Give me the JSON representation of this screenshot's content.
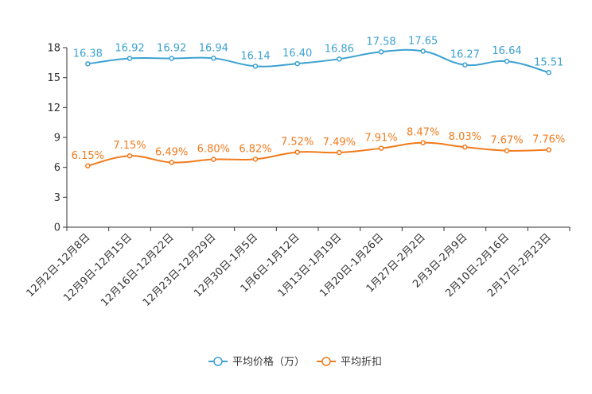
{
  "colors": {
    "series1": "#3ba1d1",
    "series2": "#f07b1c",
    "axis": "#333333"
  },
  "chart_data": {
    "type": "line",
    "title": "",
    "xlabel": "",
    "ylabel": "",
    "ylim": [
      0,
      18
    ],
    "yticks": [
      0,
      3,
      6,
      9,
      12,
      15,
      18
    ],
    "grid": false,
    "legend": "bottom-center",
    "categories": [
      "12月2日-12月8日",
      "12月9日-12月15日",
      "12月16日-12月22日",
      "12月23日-12月29日",
      "12月30日-1月5日",
      "1月6日-1月12日",
      "1月13日-1月19日",
      "1月20日-1月26日",
      "1月27日-2月2日",
      "2月3日-2月9日",
      "2月10日-2月16日",
      "2月17日-2月23日"
    ],
    "series": [
      {
        "name": "平均价格（万）",
        "color": "#3ba1d1",
        "values": [
          16.38,
          16.92,
          16.92,
          16.94,
          16.14,
          16.4,
          16.86,
          17.58,
          17.65,
          16.27,
          16.64,
          15.51
        ],
        "labels": [
          "16.38",
          "16.92",
          "16.92",
          "16.94",
          "16.14",
          "16.40",
          "16.86",
          "17.58",
          "17.65",
          "16.27",
          "16.64",
          "15.51"
        ]
      },
      {
        "name": "平均折扣",
        "color": "#f07b1c",
        "values": [
          6.15,
          7.15,
          6.49,
          6.8,
          6.82,
          7.52,
          7.49,
          7.91,
          8.47,
          8.03,
          7.67,
          7.76
        ],
        "labels": [
          "6.15%",
          "7.15%",
          "6.49%",
          "6.80%",
          "6.82%",
          "7.52%",
          "7.49%",
          "7.91%",
          "8.47%",
          "8.03%",
          "7.67%",
          "7.76%"
        ]
      }
    ]
  }
}
